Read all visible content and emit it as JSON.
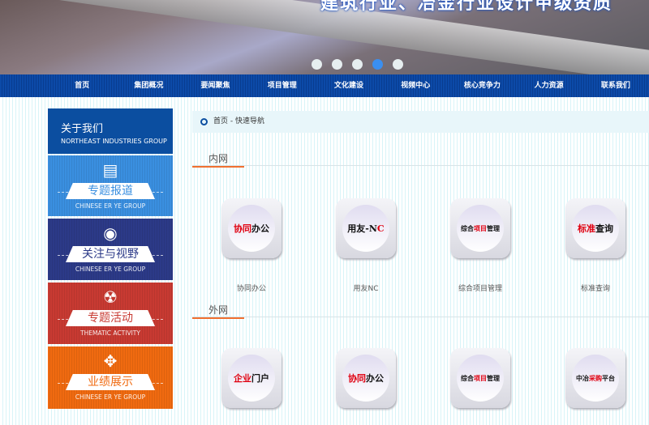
{
  "banner": {
    "slogan": "建筑行业、冶金行业设计甲级资质",
    "slides": 5,
    "active_slide": 4,
    "dot_color": "#3a8ff0"
  },
  "nav": [
    "首页",
    "集团概况",
    "要闻聚焦",
    "项目管理",
    "文化建设",
    "视频中心",
    "核心竞争力",
    "人力资源",
    "联系我们"
  ],
  "sidebar": {
    "about": {
      "title": "关于我们",
      "subtitle": "NORTHEAST INDUSTRIES GROUP"
    },
    "cards": [
      {
        "icon": "newspaper-icon",
        "glyph": "▤",
        "label": "专题报道",
        "sub": "CHINESE ER YE GROUP",
        "color": "#3a8fe0",
        "text_color": "#3a8fe0"
      },
      {
        "icon": "eye-icon",
        "glyph": "◉",
        "label": "关注与视野",
        "sub": "CHINESE ER YE GROUP",
        "color": "#2c3a88",
        "text_color": "#2c3a88"
      },
      {
        "icon": "radiation-icon",
        "glyph": "☢",
        "label": "专题活动",
        "sub": "THEMATIC ACTIVITY",
        "color": "#c83a32",
        "text_color": "#c83a32"
      },
      {
        "icon": "arrows-in-icon",
        "glyph": "✥",
        "label": "业绩展示",
        "sub": "CHINESE ER YE GROUP",
        "color": "#f06a10",
        "text_color": "#f06a10"
      }
    ]
  },
  "breadcrumb": "首页 - 快速导航",
  "intranet": {
    "title": "内网",
    "items": [
      {
        "red": "协同",
        "black": "办公",
        "label": "协同办公"
      },
      {
        "red": "",
        "black": "用友-N",
        "red2": "C",
        "label": "用友NC"
      },
      {
        "red": "项目",
        "pre": "综合",
        "black": "管理",
        "label": "综合项目管理"
      },
      {
        "red": "标准",
        "black": "查询",
        "label": "标准查询"
      }
    ]
  },
  "extranet": {
    "title": "外网",
    "items": [
      {
        "red": "企业",
        "black": "门户"
      },
      {
        "red": "协同",
        "black": "办公"
      },
      {
        "pre": "综合",
        "red": "项目",
        "black": "管理"
      },
      {
        "pre": "中冶",
        "red": "采购",
        "black": "平台"
      }
    ]
  }
}
